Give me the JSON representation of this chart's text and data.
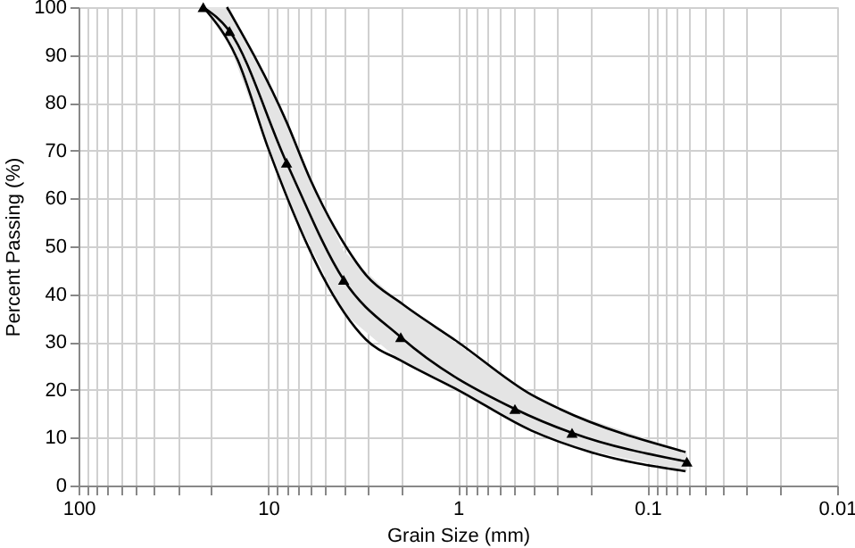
{
  "chart_data": {
    "type": "line",
    "xlabel": "Grain Size (mm)",
    "ylabel": "Percent Passing (%)",
    "log": "x",
    "grid": true,
    "xlim": [
      100,
      0.01
    ],
    "ylim": [
      0,
      100
    ],
    "xticks": [
      100,
      {
        "value": 90,
        "label": null
      },
      {
        "value": 80,
        "label": null
      },
      {
        "value": 70,
        "label": null
      },
      {
        "value": 60,
        "label": null
      },
      {
        "value": 50,
        "label": null
      },
      {
        "value": 40,
        "label": null
      },
      {
        "value": 30,
        "label": null
      },
      {
        "value": 20,
        "label": null
      },
      10,
      {
        "value": 9,
        "label": null
      },
      {
        "value": 8,
        "label": null
      },
      {
        "value": 7,
        "label": null
      },
      {
        "value": 6,
        "label": null
      },
      {
        "value": 5,
        "label": null
      },
      {
        "value": 4,
        "label": null
      },
      {
        "value": 3,
        "label": null
      },
      {
        "value": 2,
        "label": null
      },
      1,
      {
        "value": 0.9,
        "label": null
      },
      {
        "value": 0.8,
        "label": null
      },
      {
        "value": 0.7,
        "label": null
      },
      {
        "value": 0.6,
        "label": null
      },
      {
        "value": 0.5,
        "label": null
      },
      {
        "value": 0.4,
        "label": null
      },
      {
        "value": 0.3,
        "label": null
      },
      {
        "value": 0.2,
        "label": null
      },
      0.1,
      {
        "value": 0.09,
        "label": null
      },
      {
        "value": 0.08,
        "label": null
      },
      {
        "value": 0.07,
        "label": null
      },
      {
        "value": 0.06,
        "label": null
      },
      {
        "value": 0.05,
        "label": null
      },
      {
        "value": 0.04,
        "label": null
      },
      {
        "value": 0.03,
        "label": null
      },
      {
        "value": 0.02,
        "label": null
      },
      0.01
    ],
    "yticks": [
      0,
      10,
      20,
      30,
      40,
      50,
      60,
      70,
      80,
      90,
      100
    ],
    "series": [
      {
        "color": "#000000",
        "marker": "none",
        "x": [
          16.5,
          8,
          6,
          3.9,
          3.05,
          1.97,
          1,
          0.41,
          0.29,
          0.063
        ],
        "values": [
          100,
          76,
          64,
          50,
          44,
          38,
          30,
          19,
          16,
          7
        ]
      },
      {
        "color": "#000000",
        "marker": "none",
        "x": [
          22,
          14.5,
          10,
          6,
          5.2,
          3.05,
          1.97,
          1,
          0.41,
          0.2,
          0.063
        ],
        "values": [
          100,
          89,
          70.5,
          49,
          44,
          30.5,
          26,
          20,
          11.5,
          7,
          3
        ]
      },
      {
        "color": "#000000",
        "marker": "triangle",
        "x": [
          22,
          16,
          8,
          4,
          2,
          0.5,
          0.25,
          0.062
        ],
        "values": [
          100,
          95,
          67.5,
          43,
          31,
          16,
          11,
          5
        ],
        "lower": [
          100,
          92,
          60,
          36,
          26,
          13,
          8,
          3
        ],
        "upper": [
          100,
          100,
          76,
          49,
          38,
          21,
          15,
          7
        ]
      }
    ]
  }
}
